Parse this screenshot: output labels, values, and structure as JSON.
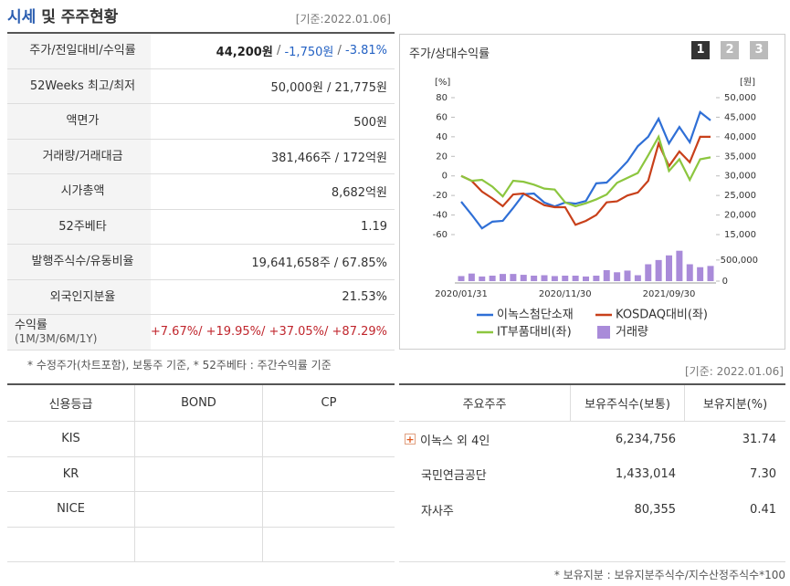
{
  "header": {
    "title_parts": [
      {
        "text": "시세",
        "color": "#2a5db0"
      },
      {
        "text": " 및 주주현황",
        "color": "#333333"
      }
    ],
    "date": "[기준:2022.01.06]"
  },
  "price_table": {
    "rows": [
      {
        "label": "주가/전일대비/수익률",
        "parts": [
          {
            "text": "44,200원",
            "color": "#222222"
          },
          {
            "text": " / ",
            "color": "#666666"
          },
          {
            "text": "-1,750원",
            "color": "#2462c4"
          },
          {
            "text": " / ",
            "color": "#666666"
          },
          {
            "text": "-3.81%",
            "color": "#2462c4"
          }
        ]
      },
      {
        "label": "52Weeks 최고/최저",
        "parts": [
          {
            "text": "50,000원 / 21,775원",
            "color": "#333333"
          }
        ]
      },
      {
        "label": "액면가",
        "parts": [
          {
            "text": "500원",
            "color": "#333333"
          }
        ]
      },
      {
        "label": "거래량/거래대금",
        "parts": [
          {
            "text": "381,466주 / 172억원",
            "color": "#333333"
          }
        ]
      },
      {
        "label": "시가총액",
        "parts": [
          {
            "text": "8,682억원",
            "color": "#333333"
          }
        ]
      },
      {
        "label": "52주베타",
        "parts": [
          {
            "text": "1.19",
            "color": "#333333"
          }
        ]
      },
      {
        "label": "발행주식수/유동비율",
        "parts": [
          {
            "text": "19,641,658주 / 67.85%",
            "color": "#333333"
          }
        ]
      },
      {
        "label": "외국인지분율",
        "parts": [
          {
            "text": "21.53%",
            "color": "#333333"
          }
        ]
      },
      {
        "label": "수익률",
        "sublabel": "(1M/3M/6M/1Y)",
        "parts": [
          {
            "text": "+7.67%/ +19.95%/ +37.05%/ +87.29%",
            "color": "#c0262d"
          }
        ]
      }
    ],
    "note": "* 수정주가(차트포함), 보통주 기준, * 52주베타 : 주간수익률 기준"
  },
  "credit_table": {
    "headers": [
      "신용등급",
      "BOND",
      "CP"
    ],
    "rows": [
      [
        "KIS"
      ],
      [
        "KR"
      ],
      [
        "NICE"
      ]
    ]
  },
  "chart_panel": {
    "title": "주가/상대수익률",
    "buttons": [
      "1",
      "2",
      "3"
    ]
  },
  "chart_data": {
    "type": "line",
    "y_unit": "[%]",
    "y2_unit": "[원]",
    "categories": [
      "2020/01/31",
      null,
      null,
      null,
      null,
      null,
      null,
      null,
      null,
      null,
      "2020/11/30",
      null,
      null,
      null,
      null,
      null,
      null,
      null,
      null,
      null,
      "2021/09/30",
      null,
      null,
      null,
      null
    ],
    "ylim": [
      -60,
      80
    ],
    "yticks": [
      80,
      60,
      40,
      20,
      0,
      -20,
      -40,
      -60
    ],
    "y2lim": [
      15000,
      50000
    ],
    "y2ticks": [
      {
        "value": 50000,
        "label": "50,000"
      },
      {
        "value": 45000,
        "label": "45,000"
      },
      {
        "value": 40000,
        "label": "40,000"
      },
      {
        "value": 35000,
        "label": "35,000"
      },
      {
        "value": 30000,
        "label": "30,000"
      },
      {
        "value": 25000,
        "label": "25,000"
      },
      {
        "value": 20000,
        "label": "20,000"
      },
      {
        "value": 15000,
        "label": "15,000"
      }
    ],
    "volume_lim": [
      0,
      800000
    ],
    "volume_ticks": [
      {
        "value": 500000,
        "label": "500,000"
      },
      0
    ],
    "series": [
      {
        "name": "이녹스첨단소재",
        "color": "#2f6fd6",
        "axis": "y2",
        "values": [
          23400,
          20100,
          16600,
          18300,
          18500,
          21800,
          25300,
          25500,
          23200,
          22200,
          23200,
          22900,
          23600,
          28100,
          28300,
          30900,
          33700,
          37600,
          40000,
          44600,
          38300,
          42500,
          38600,
          46300,
          44200
        ]
      },
      {
        "name": "KOSDAQ대비(좌)",
        "color": "#c8401a",
        "values": [
          0,
          -5,
          -16,
          -23,
          -31,
          -19,
          -18,
          -24,
          -30,
          -32,
          -32,
          -50,
          -46,
          -40,
          -27,
          -26,
          -20,
          -17,
          -5,
          33,
          10,
          25,
          14,
          40,
          40
        ]
      },
      {
        "name": "IT부품대비(좌)",
        "color": "#8cc63f",
        "values": [
          0,
          -5,
          -4,
          -11,
          -21,
          -5,
          -6,
          -9,
          -13,
          -14,
          -27,
          -31,
          -28,
          -24,
          -19,
          -7,
          -2,
          3,
          21,
          40,
          5,
          17,
          -4,
          17,
          19
        ]
      },
      {
        "name": "거래량",
        "color": "#a98bd9",
        "type": "bar",
        "axis": "volume",
        "values": [
          120000,
          180000,
          110000,
          130000,
          170000,
          170000,
          150000,
          130000,
          140000,
          120000,
          130000,
          130000,
          110000,
          130000,
          260000,
          210000,
          250000,
          140000,
          400000,
          500000,
          610000,
          720000,
          400000,
          330000,
          360000
        ]
      }
    ]
  },
  "holder_table": {
    "date": "[기준: 2022.01.06]",
    "headers": [
      "주요주주",
      "보유주식수(보통)",
      "보유지분(%)"
    ],
    "rows": [
      [
        "이녹스 외 4인",
        "6,234,756",
        "31.74"
      ],
      [
        "국민연금공단",
        "1,433,014",
        "7.30"
      ],
      [
        "자사주",
        "80,355",
        "0.41"
      ]
    ],
    "note": "* 보유지분 : 보유지분주식수/지수산정주식수*100"
  }
}
